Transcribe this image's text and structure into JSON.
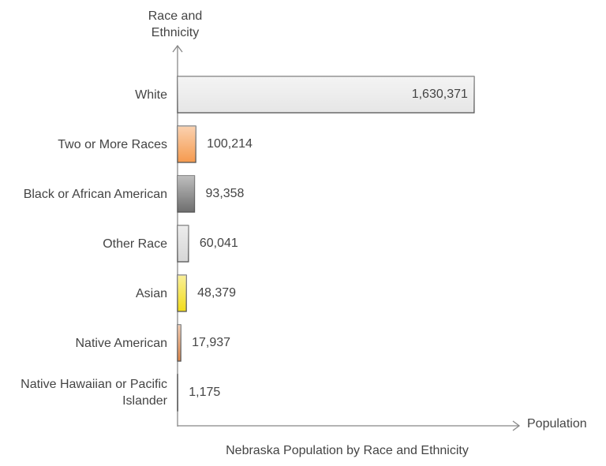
{
  "chart_data": {
    "type": "bar",
    "orientation": "horizontal",
    "title": "Nebraska Population by Race and Ethnicity",
    "y_label": "Race and Ethnicity",
    "x_label": "Population",
    "categories": [
      "White",
      "Two or More Races",
      "Black or African American",
      "Other Race",
      "Asian",
      "Native American",
      "Native Hawaiian or Pacific Islander"
    ],
    "values": [
      1630371,
      100214,
      93358,
      60041,
      48379,
      17937,
      1175
    ],
    "value_labels": [
      "1,630,371",
      "100,214",
      "93,358",
      "60,041",
      "48,379",
      "17,937",
      "1,175"
    ],
    "colors": [
      "#e6e6e6",
      "#f59a4e",
      "#6e6e6e",
      "#d6d6d6",
      "#f2dc1a",
      "#e0874a",
      "#9a9a9a"
    ],
    "xlim": [
      0,
      1865000
    ]
  }
}
